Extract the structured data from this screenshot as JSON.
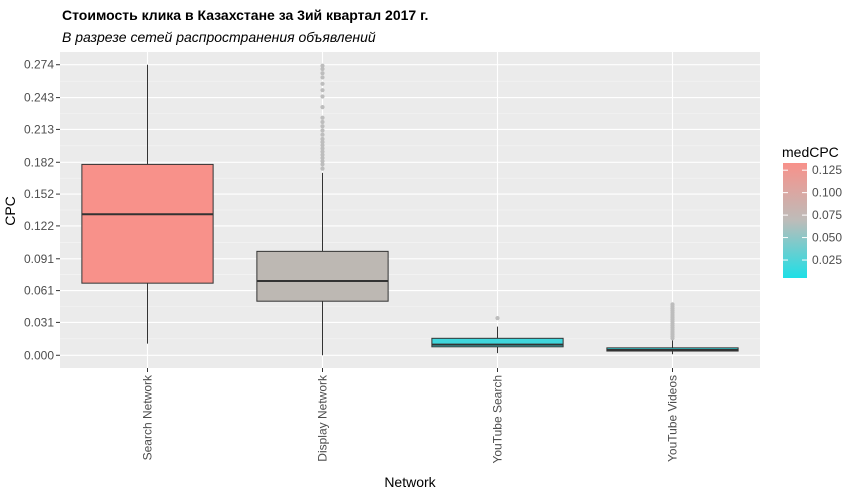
{
  "chart_data": {
    "type": "boxplot",
    "title": "Стоимость клика в Казахстане за 3ий квартал 2017 г.",
    "subtitle": "В разрезе сетей распространения объявлений",
    "xlabel": "Network",
    "ylabel": "CPC",
    "ylim": [
      -0.012,
      0.286
    ],
    "y_ticks": [
      0.0,
      0.031,
      0.061,
      0.091,
      0.122,
      0.152,
      0.182,
      0.213,
      0.243,
      0.274
    ],
    "y_tick_labels": [
      "0.000",
      "0.031",
      "0.061",
      "0.091",
      "0.122",
      "0.152",
      "0.182",
      "0.213",
      "0.243",
      "0.274"
    ],
    "categories": [
      "Search Network",
      "Display Network",
      "YouTube Search",
      "YouTube Videos"
    ],
    "boxes": [
      {
        "category": "Search Network",
        "lower_whisker": 0.011,
        "q1": 0.068,
        "median": 0.133,
        "q3": 0.18,
        "upper_whisker": 0.274,
        "medCPC": 0.133,
        "fill": "#f8918a",
        "outliers": []
      },
      {
        "category": "Display Network",
        "lower_whisker": 0.0,
        "q1": 0.051,
        "median": 0.07,
        "q3": 0.098,
        "upper_whisker": 0.172,
        "medCPC": 0.07,
        "fill": "#bdb8b3",
        "outliers": [
          0.176,
          0.18,
          0.183,
          0.186,
          0.189,
          0.192,
          0.195,
          0.198,
          0.201,
          0.204,
          0.208,
          0.212,
          0.216,
          0.22,
          0.224,
          0.234,
          0.244,
          0.25,
          0.256,
          0.262,
          0.266,
          0.27,
          0.273
        ]
      },
      {
        "category": "YouTube Search",
        "lower_whisker": 0.002,
        "q1": 0.008,
        "median": 0.01,
        "q3": 0.016,
        "upper_whisker": 0.027,
        "medCPC": 0.01,
        "fill": "#3fd6dc",
        "outliers": [
          0.035
        ]
      },
      {
        "category": "YouTube Videos",
        "lower_whisker": 0.001,
        "q1": 0.004,
        "median": 0.005,
        "q3": 0.007,
        "upper_whisker": 0.014,
        "medCPC": 0.005,
        "fill": "#2dd8df",
        "outliers": [
          0.016,
          0.018,
          0.02,
          0.022,
          0.024,
          0.026,
          0.028,
          0.03,
          0.032,
          0.034,
          0.036,
          0.038,
          0.04,
          0.042,
          0.044,
          0.046,
          0.048
        ]
      }
    ],
    "legend": {
      "title": "medCPC",
      "position": "right",
      "type": "colorbar",
      "range": [
        0.005,
        0.133
      ],
      "low_color": "#1ddfe6",
      "high_color": "#f8918a",
      "ticks": [
        0.025,
        0.05,
        0.075,
        0.1,
        0.125
      ],
      "tick_labels": [
        "0.025",
        "0.050",
        "0.075",
        "0.100",
        "0.125"
      ]
    },
    "grid": true,
    "panel_background": "#ebebeb",
    "outlier_color": "#bdbdbd"
  }
}
